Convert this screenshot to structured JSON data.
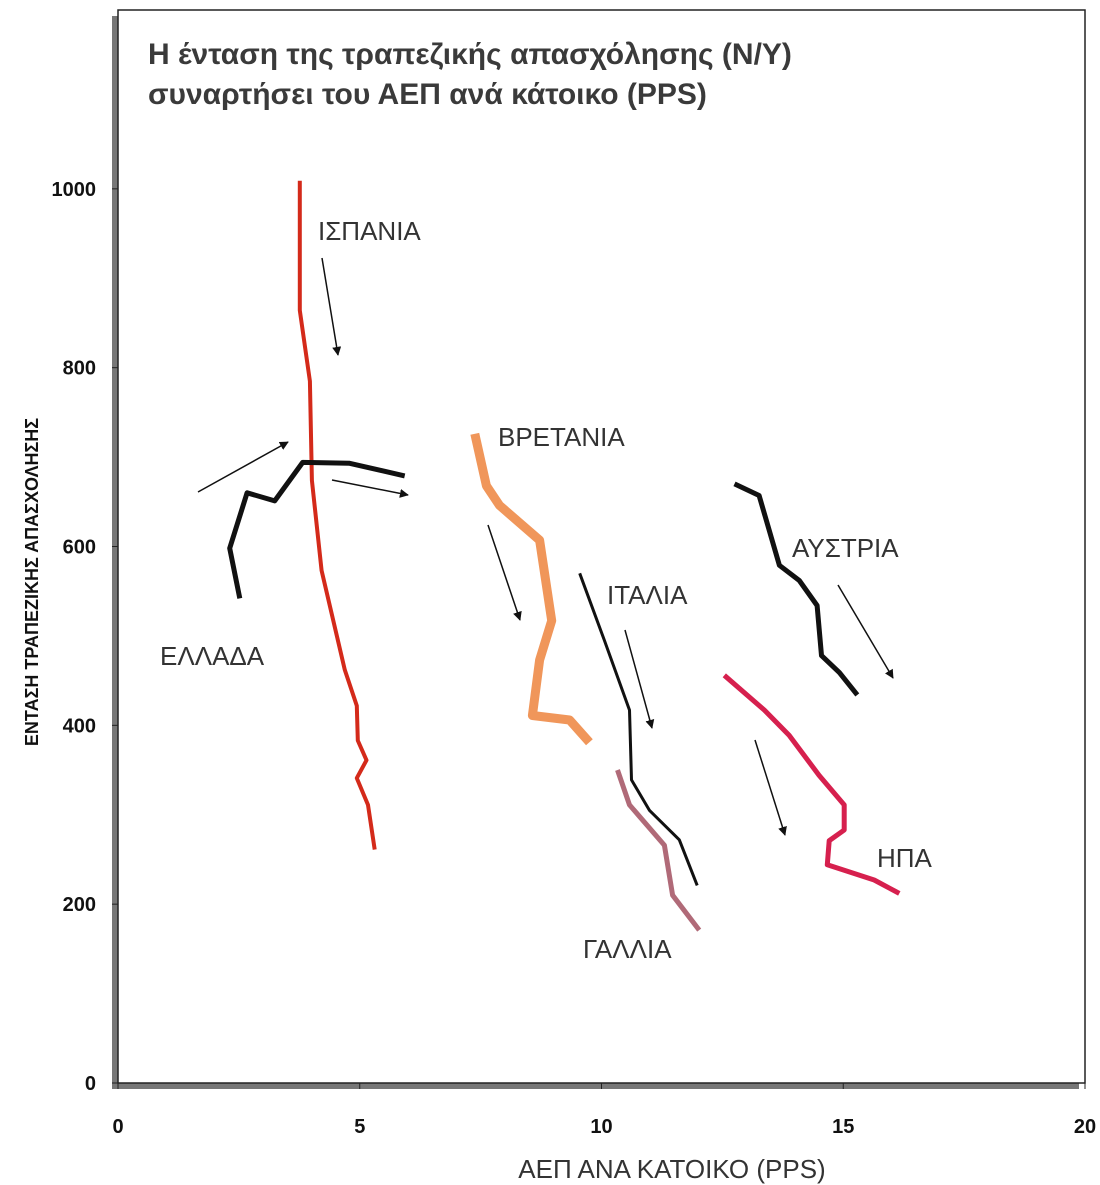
{
  "chart_data": {
    "type": "line",
    "title": [
      "Η ένταση της τραπεζικής απασχόλησης (Ν/Υ)",
      "συναρτήσει του ΑΕΠ ανά κάτοικο (PPS)"
    ],
    "x_label": "ΑΕΠ ΑΝΑ ΚΑΤΟΙΚΟ (PPS)",
    "y_label": "ΕΝΤΑΣΗ ΤΡΑΠΕΖΙΚΗΣ ΑΠΑΣΧΟΛΗΣΗΣ",
    "xlim": [
      0,
      20
    ],
    "ylim": [
      0,
      1200
    ],
    "xticks": [
      0,
      5,
      10,
      15,
      20
    ],
    "yticks": [
      0,
      200,
      400,
      600,
      800,
      1000
    ],
    "grid": false,
    "series": [
      {
        "name": "ΙΣΠΑΝΙΑ",
        "color": "#d42a1a",
        "line_width": 4,
        "x": [
          3.76,
          3.76,
          3.97,
          4.01,
          4.21,
          4.69,
          4.94,
          4.96,
          5.14,
          4.94,
          5.17,
          5.31
        ],
        "values": [
          1009,
          864,
          785,
          674,
          573,
          462,
          422,
          383,
          361,
          341,
          311,
          261
        ]
      },
      {
        "name": "ΕΛΛΑΔΑ",
        "color": "#111111",
        "line_width": 5,
        "x": [
          2.52,
          2.31,
          2.67,
          3.24,
          3.82,
          4.79,
          5.93
        ],
        "values": [
          542,
          598,
          660,
          651,
          694,
          693,
          679
        ]
      },
      {
        "name": "ΒΡΕΤΑΝΙΑ",
        "color": "#f0965a",
        "line_width": 9,
        "x": [
          7.38,
          7.62,
          7.89,
          8.72,
          8.97,
          8.72,
          8.57,
          9.34,
          9.75
        ],
        "values": [
          726,
          668,
          646,
          607,
          517,
          473,
          411,
          406,
          381
        ]
      },
      {
        "name": "ΙΤΑΛΙΑ",
        "color": "#111111",
        "line_width": 3,
        "x": [
          9.55,
          10.06,
          10.58,
          10.62,
          10.99,
          11.61,
          11.98
        ],
        "values": [
          570,
          495,
          417,
          339,
          305,
          272,
          221
        ]
      },
      {
        "name": "ΓΑΛΛΙΑ",
        "color": "#b06a78",
        "line_width": 5,
        "x": [
          10.33,
          10.58,
          11.3,
          11.47,
          12.02
        ],
        "values": [
          350,
          311,
          266,
          210,
          171
        ]
      },
      {
        "name": "ΑΥΣΤΡΙΑ",
        "color": "#111111",
        "line_width": 5,
        "x": [
          12.75,
          13.26,
          13.68,
          14.09,
          14.46,
          14.55,
          14.92,
          15.29
        ],
        "values": [
          670,
          657,
          579,
          562,
          534,
          478,
          459,
          434
        ]
      },
      {
        "name": "ΗΠΑ",
        "color": "#d6204e",
        "line_width": 5,
        "x": [
          12.54,
          13.37,
          13.88,
          14.5,
          15.02,
          15.02,
          14.71,
          14.67,
          15.64,
          16.16
        ],
        "values": [
          456,
          417,
          389,
          344,
          311,
          283,
          271,
          244,
          227,
          212
        ]
      }
    ]
  }
}
